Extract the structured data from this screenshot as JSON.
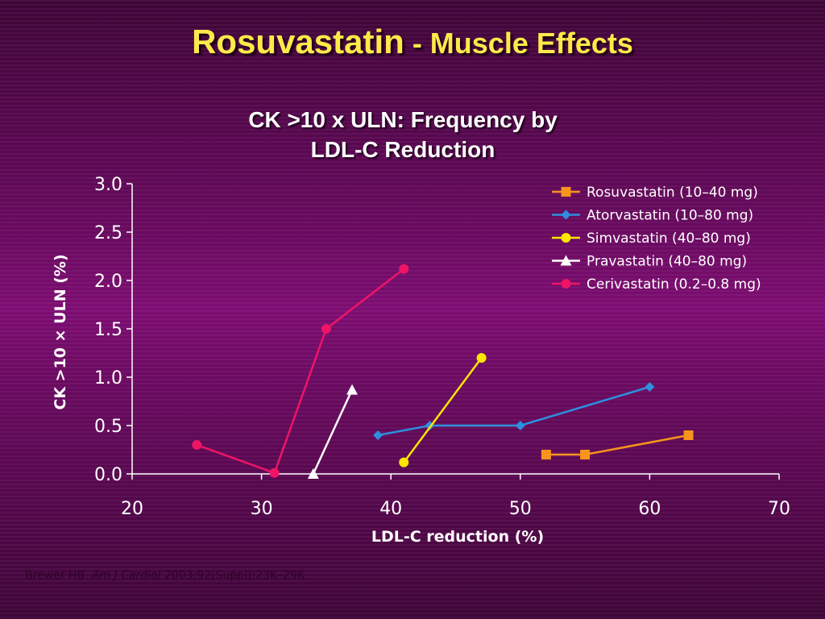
{
  "slide": {
    "title_main": "Rosuvastatin",
    "title_sub": " - Muscle Effects"
  },
  "citation": {
    "authors": "Brewer HB. ",
    "journal": "Am J Cardiol",
    "details": " 2003;92(Suppl):23K–29K"
  },
  "colors": {
    "title": "#ffe94a",
    "axis": "#ffffff",
    "rosuvastatin": "#f7941d",
    "atorvastatin": "#2e8fde",
    "simvastatin": "#ffe600",
    "pravastatin": "#ffffff",
    "cerivastatin": "#ee1466"
  },
  "chart_data": {
    "type": "line",
    "title_line1": "CK >10 x ULN: Frequency by",
    "title_line2": "LDL-C Reduction",
    "xlabel": "LDL-C reduction (%)",
    "ylabel": "CK >10 × ULN (%)",
    "xlim": [
      20,
      70
    ],
    "ylim": [
      0,
      3
    ],
    "x_ticks": [
      "20",
      "30",
      "40",
      "50",
      "60",
      "70"
    ],
    "y_ticks": [
      "0.0",
      "0.5",
      "1.0",
      "1.5",
      "2.0",
      "2.5",
      "3.0"
    ],
    "grid": false,
    "legend_position": "top-right",
    "series": [
      {
        "name": "Rosuvastatin (10–40 mg)",
        "marker": "square",
        "color": "#f7941d",
        "x": [
          52,
          55,
          63
        ],
        "y": [
          0.2,
          0.2,
          0.4
        ]
      },
      {
        "name": "Atorvastatin (10–80 mg)",
        "marker": "diamond",
        "color": "#2e8fde",
        "x": [
          39,
          43,
          50,
          60
        ],
        "y": [
          0.4,
          0.5,
          0.5,
          0.9
        ]
      },
      {
        "name": "Simvastatin (40–80 mg)",
        "marker": "circle",
        "color": "#ffe600",
        "x": [
          41,
          47
        ],
        "y": [
          0.12,
          1.2
        ]
      },
      {
        "name": "Pravastatin (40–80 mg)",
        "marker": "triangle",
        "color": "#ffffff",
        "x": [
          34,
          37
        ],
        "y": [
          0.0,
          0.87
        ]
      },
      {
        "name": "Cerivastatin (0.2–0.8 mg)",
        "marker": "circle",
        "color": "#ee1466",
        "x": [
          25,
          31,
          35,
          41
        ],
        "y": [
          0.3,
          0.01,
          1.5,
          2.12
        ]
      }
    ]
  }
}
